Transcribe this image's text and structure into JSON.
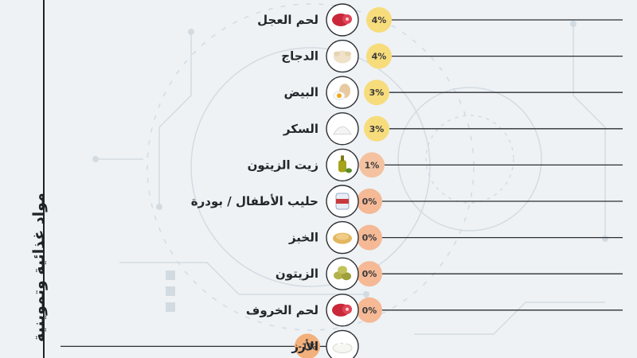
{
  "side_title": "مواد غذائية وتموينية",
  "colors": {
    "line": "#2b2f33",
    "badge_positive_high": "#f7dc7c",
    "badge_positive_low": "#f4c2a0",
    "badge_zero": "#f5b996",
    "badge_negative": "#f2b07c",
    "icon_ring": "#2b2f33",
    "icon_fill": "#ffffff"
  },
  "chart_data": {
    "type": "bar",
    "orientation": "horizontal",
    "categories": [
      "لحم العجل",
      "الدجاج",
      "البيض",
      "السكر",
      "زيت الزيتون",
      "حليب الأطفال / بودرة",
      "الخبز",
      "الزيتون",
      "لحم الخروف",
      "الأرز"
    ],
    "values": [
      4,
      4,
      3,
      3,
      1,
      0,
      0,
      0,
      0,
      -1
    ],
    "value_labels": [
      "4%",
      "4%",
      "3%",
      "3%",
      "1%",
      "0%",
      "0%",
      "0%",
      "0%",
      "-1%"
    ],
    "icons": [
      "meat-icon",
      "chicken-icon",
      "egg-icon",
      "sugar-icon",
      "olive-oil-icon",
      "baby-milk-icon",
      "bread-icon",
      "olives-icon",
      "meat-icon",
      "rice-icon"
    ],
    "unit": "%",
    "xlim": [
      -1,
      4
    ],
    "grid": false,
    "legend": "none"
  }
}
